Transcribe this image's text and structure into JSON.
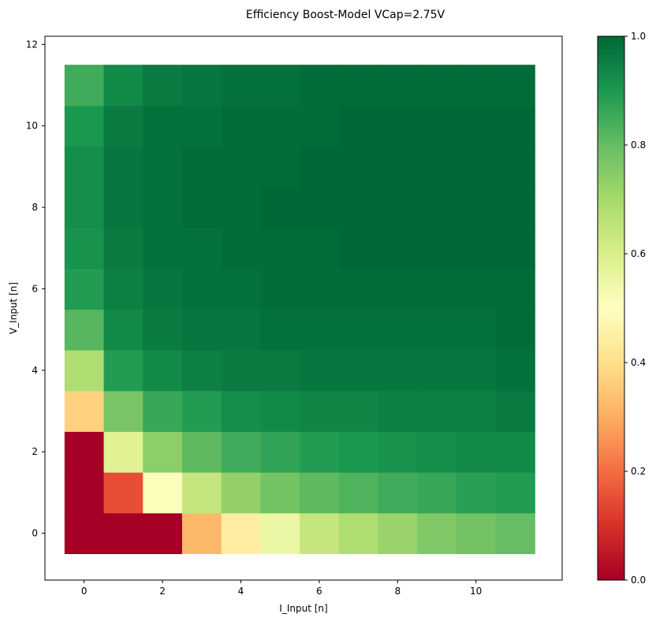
{
  "chart_data": {
    "type": "heatmap",
    "title": "Efficiency Boost-Model VCap=2.75V",
    "xlabel": "I_Input [n]",
    "ylabel": "V_Input [n]",
    "x_ticks": [
      "0",
      "2",
      "4",
      "6",
      "8",
      "10"
    ],
    "y_ticks": [
      "0",
      "2",
      "4",
      "6",
      "8",
      "10",
      "12"
    ],
    "colorbar_ticks": [
      "0.0",
      "0.2",
      "0.4",
      "0.6",
      "0.8",
      "1.0"
    ],
    "colormap": "RdYlGn",
    "vmin": 0.0,
    "vmax": 1.0,
    "xlim": [
      -1.0,
      12.2
    ],
    "ylim": [
      -1.15,
      12.2
    ],
    "x": [
      0,
      1,
      2,
      3,
      4,
      5,
      6,
      7,
      8,
      9,
      10,
      11
    ],
    "y": [
      0,
      1,
      2,
      3,
      4,
      5,
      6,
      7,
      8,
      9,
      10,
      11
    ],
    "values": [
      [
        0.0,
        0.0,
        0.0,
        0.32,
        0.44,
        0.55,
        0.64,
        0.68,
        0.72,
        0.76,
        0.78,
        0.8
      ],
      [
        0.0,
        0.15,
        0.51,
        0.64,
        0.73,
        0.78,
        0.81,
        0.83,
        0.85,
        0.86,
        0.88,
        0.89
      ],
      [
        0.0,
        0.58,
        0.74,
        0.81,
        0.85,
        0.87,
        0.89,
        0.9,
        0.91,
        0.92,
        0.93,
        0.93
      ],
      [
        0.37,
        0.77,
        0.86,
        0.89,
        0.92,
        0.93,
        0.94,
        0.94,
        0.95,
        0.95,
        0.95,
        0.96
      ],
      [
        0.68,
        0.89,
        0.93,
        0.95,
        0.96,
        0.96,
        0.97,
        0.97,
        0.97,
        0.97,
        0.97,
        0.98
      ],
      [
        0.82,
        0.93,
        0.96,
        0.97,
        0.97,
        0.98,
        0.98,
        0.98,
        0.98,
        0.98,
        0.98,
        0.99
      ],
      [
        0.89,
        0.95,
        0.97,
        0.98,
        0.98,
        0.99,
        0.99,
        0.99,
        0.99,
        0.99,
        0.99,
        0.99
      ],
      [
        0.91,
        0.96,
        0.98,
        0.98,
        0.99,
        0.99,
        0.99,
        1.0,
        1.0,
        1.0,
        1.0,
        1.0
      ],
      [
        0.92,
        0.97,
        0.98,
        0.99,
        0.99,
        1.0,
        1.0,
        1.0,
        1.0,
        1.0,
        1.0,
        1.0
      ],
      [
        0.92,
        0.97,
        0.98,
        0.99,
        0.99,
        0.99,
        1.0,
        1.0,
        1.0,
        1.0,
        1.0,
        1.0
      ],
      [
        0.9,
        0.96,
        0.98,
        0.98,
        0.99,
        0.99,
        0.99,
        1.0,
        1.0,
        1.0,
        1.0,
        1.0
      ],
      [
        0.85,
        0.93,
        0.96,
        0.97,
        0.98,
        0.98,
        0.99,
        0.99,
        0.99,
        0.99,
        0.99,
        0.99
      ]
    ]
  }
}
